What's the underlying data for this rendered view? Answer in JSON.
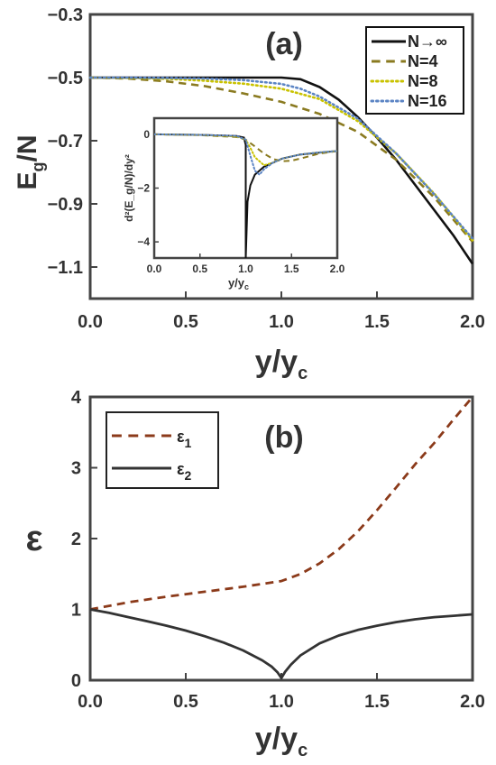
{
  "chart_data": [
    {
      "panel": "a",
      "type": "line",
      "annotation": "(a)",
      "xlabel": "y/y",
      "xlabel_sub": "c",
      "ylabel": "E",
      "ylabel_sub": "g",
      "ylabel_tail": "/N",
      "xlim": [
        0,
        2
      ],
      "ylim": [
        -1.2,
        -0.3
      ],
      "xticks": [
        "0.0",
        "0.5",
        "1.0",
        "1.5",
        "2.0"
      ],
      "yticks": [
        "-0.3",
        "-0.5",
        "-0.7",
        "-0.9",
        "-1.1"
      ],
      "legend_position": "top-right",
      "series": [
        {
          "name": "N→∞",
          "color": "#111111",
          "style": "solid",
          "x": [
            0,
            0.5,
            1.0,
            1.1,
            1.2,
            1.3,
            1.4,
            1.5,
            1.6,
            1.7,
            1.8,
            1.9,
            2.0
          ],
          "y": [
            -0.5,
            -0.5,
            -0.5,
            -0.505,
            -0.53,
            -0.57,
            -0.625,
            -0.69,
            -0.76,
            -0.84,
            -0.92,
            -1.0,
            -1.09
          ]
        },
        {
          "name": "N=4",
          "color": "#8a7a20",
          "style": "dashed",
          "x": [
            0,
            0.2,
            0.4,
            0.6,
            0.8,
            1.0,
            1.2,
            1.4,
            1.6,
            1.8,
            2.0
          ],
          "y": [
            -0.5,
            -0.503,
            -0.512,
            -0.527,
            -0.55,
            -0.577,
            -0.615,
            -0.672,
            -0.76,
            -0.88,
            -1.02
          ]
        },
        {
          "name": "N=8",
          "color": "#c9c200",
          "style": "dotted",
          "x": [
            0,
            0.2,
            0.4,
            0.6,
            0.8,
            1.0,
            1.2,
            1.4,
            1.6,
            1.8,
            2.0
          ],
          "y": [
            -0.5,
            -0.501,
            -0.504,
            -0.51,
            -0.519,
            -0.535,
            -0.568,
            -0.638,
            -0.74,
            -0.868,
            -1.015
          ]
        },
        {
          "name": "N=16",
          "color": "#5b84c4",
          "style": "dotted",
          "x": [
            0,
            0.2,
            0.4,
            0.6,
            0.8,
            1.0,
            1.1,
            1.2,
            1.4,
            1.6,
            1.8,
            2.0
          ],
          "y": [
            -0.5,
            -0.5,
            -0.501,
            -0.503,
            -0.508,
            -0.52,
            -0.535,
            -0.56,
            -0.63,
            -0.74,
            -0.87,
            -1.01
          ]
        }
      ],
      "inset": {
        "type": "line",
        "xlabel": "y/y",
        "xlabel_sub": "c",
        "ylabel": "d²(E_g/N)/dy²",
        "xlim": [
          0,
          2
        ],
        "ylim": [
          -4.6,
          0.6
        ],
        "xticks": [
          "0.0",
          "0.5",
          "1.0",
          "1.5",
          "2.0"
        ],
        "yticks": [
          "0",
          "-2",
          "-4"
        ],
        "series": [
          {
            "name": "N→∞",
            "color": "#111111",
            "style": "solid",
            "x": [
              0,
              0.5,
              0.9,
              0.98,
              1.0,
              1.0,
              1.02,
              1.05,
              1.1,
              1.2,
              1.4,
              1.6,
              1.8,
              2.0
            ],
            "y": [
              0,
              -0.02,
              -0.06,
              -0.12,
              -0.4,
              -4.6,
              -2.5,
              -1.9,
              -1.5,
              -1.2,
              -0.9,
              -0.75,
              -0.68,
              -0.62
            ]
          },
          {
            "name": "N=4",
            "color": "#8a7a20",
            "style": "dashed",
            "x": [
              0,
              0.5,
              0.9,
              1.0,
              1.1,
              1.2,
              1.3,
              1.4,
              1.5,
              1.6,
              1.8,
              2.0
            ],
            "y": [
              0,
              -0.03,
              -0.1,
              -0.2,
              -0.45,
              -0.72,
              -0.92,
              -1.0,
              -0.98,
              -0.9,
              -0.72,
              -0.62
            ]
          },
          {
            "name": "N=8",
            "color": "#c9c200",
            "style": "dotted",
            "x": [
              0,
              0.5,
              0.9,
              1.0,
              1.05,
              1.1,
              1.2,
              1.3,
              1.4,
              1.6,
              1.8,
              2.0
            ],
            "y": [
              0,
              -0.02,
              -0.08,
              -0.2,
              -0.5,
              -0.85,
              -1.15,
              -1.05,
              -0.9,
              -0.75,
              -0.67,
              -0.62
            ]
          },
          {
            "name": "N=16",
            "color": "#5b84c4",
            "style": "dotted",
            "x": [
              0,
              0.5,
              0.9,
              1.0,
              1.05,
              1.1,
              1.15,
              1.2,
              1.3,
              1.4,
              1.6,
              1.8,
              2.0
            ],
            "y": [
              0,
              -0.02,
              -0.06,
              -0.2,
              -0.8,
              -1.35,
              -1.5,
              -1.3,
              -1.05,
              -0.9,
              -0.75,
              -0.67,
              -0.62
            ]
          }
        ]
      }
    },
    {
      "panel": "b",
      "type": "line",
      "annotation": "(b)",
      "xlabel": "y/y",
      "xlabel_sub": "c",
      "ylabel": "ε",
      "xlim": [
        0,
        2
      ],
      "ylim": [
        0,
        4
      ],
      "xticks": [
        "0.0",
        "0.5",
        "1.0",
        "1.5",
        "2.0"
      ],
      "yticks": [
        "0",
        "1",
        "2",
        "3",
        "4"
      ],
      "legend_position": "top-left",
      "series": [
        {
          "name": "ε",
          "name_sub": "1",
          "color": "#8b3a1a",
          "style": "dashed",
          "x": [
            0,
            0.2,
            0.4,
            0.6,
            0.8,
            1.0,
            1.1,
            1.2,
            1.3,
            1.4,
            1.5,
            1.6,
            1.7,
            1.8,
            1.9,
            2.0
          ],
          "y": [
            1.0,
            1.1,
            1.18,
            1.25,
            1.32,
            1.4,
            1.5,
            1.65,
            1.85,
            2.1,
            2.4,
            2.72,
            3.05,
            3.35,
            3.68,
            4.0
          ]
        },
        {
          "name": "ε",
          "name_sub": "2",
          "color": "#333333",
          "style": "solid",
          "x": [
            0,
            0.1,
            0.2,
            0.3,
            0.4,
            0.5,
            0.6,
            0.7,
            0.8,
            0.9,
            0.95,
            0.98,
            1.0,
            1.02,
            1.05,
            1.1,
            1.2,
            1.3,
            1.4,
            1.5,
            1.6,
            1.7,
            1.8,
            1.9,
            2.0
          ],
          "y": [
            1.0,
            0.95,
            0.89,
            0.83,
            0.77,
            0.7,
            0.62,
            0.53,
            0.42,
            0.28,
            0.19,
            0.11,
            0.03,
            0.12,
            0.22,
            0.35,
            0.52,
            0.63,
            0.71,
            0.77,
            0.82,
            0.86,
            0.89,
            0.91,
            0.93
          ]
        }
      ]
    }
  ]
}
